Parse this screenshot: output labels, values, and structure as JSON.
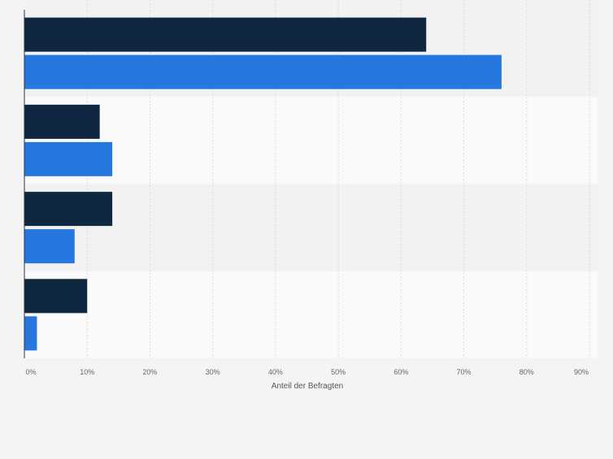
{
  "chart_data": {
    "type": "bar",
    "orientation": "horizontal",
    "categories": [
      "",
      "",
      "",
      ""
    ],
    "series": [
      {
        "values": [
          64,
          12,
          14,
          10
        ],
        "color": "#0f2741"
      },
      {
        "values": [
          76,
          14,
          8,
          2
        ],
        "color": "#2677de"
      }
    ],
    "xlim": [
      0,
      90
    ],
    "xticks": [
      "0%",
      "10%",
      "20%",
      "30%",
      "40%",
      "50%",
      "60%",
      "70%",
      "80%",
      "90%"
    ],
    "xlabel": "Anteil der Befragten",
    "grid": true
  }
}
